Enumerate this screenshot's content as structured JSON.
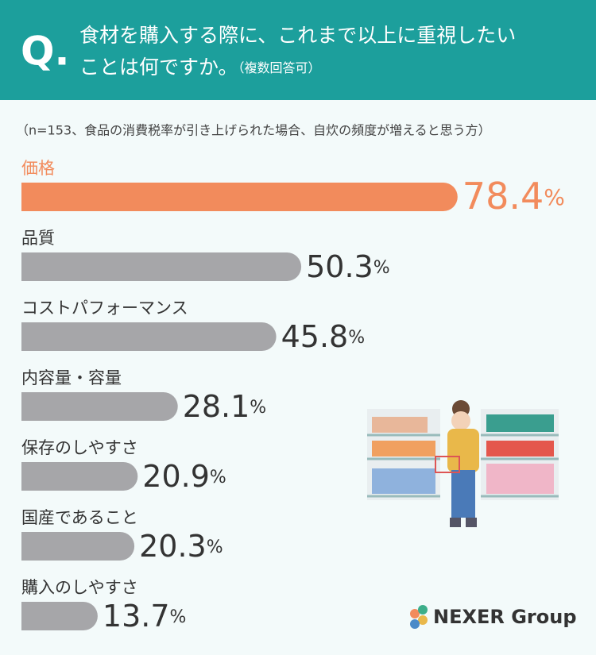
{
  "header": {
    "mark": "Q.",
    "question": [
      "食材を購入する際に、これまで以上に重視したい",
      "ことは何ですか。"
    ],
    "note": "（複数回答可）"
  },
  "chart_data": {
    "type": "bar",
    "orientation": "horizontal",
    "subtitle": "（n=153、食品の消費税率が引き上げられた場合、自炊の頻度が増えると思う方）",
    "categories": [
      "価格",
      "品質",
      "コストパフォーマンス",
      "内容量・容量",
      "保存のしやすさ",
      "国産であること",
      "購入のしやすさ"
    ],
    "values": [
      78.4,
      50.3,
      45.8,
      28.1,
      20.9,
      20.3,
      13.7
    ],
    "value_labels": [
      "78.4%",
      "50.3%",
      "45.8%",
      "28.1%",
      "20.9%",
      "20.3%",
      "13.7%"
    ],
    "colors": [
      "#f28b5c",
      "#a6a6a9",
      "#a6a6a9",
      "#a6a6a9",
      "#a6a6a9",
      "#a6a6a9",
      "#a6a6a9"
    ]
  },
  "logo": "NEXER Group"
}
